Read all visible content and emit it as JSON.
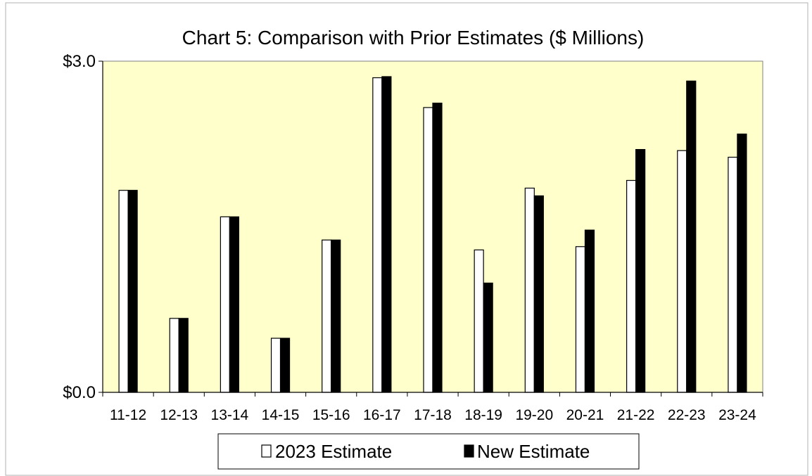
{
  "chart_data": {
    "type": "bar",
    "title": "Chart 5: Comparison with Prior Estimates ($ Millions)",
    "categories": [
      "11-12",
      "12-13",
      "13-14",
      "14-15",
      "15-16",
      "16-17",
      "17-18",
      "18-19",
      "19-20",
      "20-21",
      "21-22",
      "22-23",
      "23-24"
    ],
    "series": [
      {
        "name": "2023 Estimate",
        "values": [
          1.83,
          0.67,
          1.59,
          0.49,
          1.38,
          2.85,
          2.58,
          1.29,
          1.85,
          1.32,
          1.92,
          2.19,
          2.13
        ],
        "color": "#ffffff"
      },
      {
        "name": "New Estimate",
        "values": [
          1.83,
          0.67,
          1.59,
          0.49,
          1.38,
          2.86,
          2.62,
          0.99,
          1.78,
          1.47,
          2.2,
          2.82,
          2.34
        ],
        "color": "#000000"
      }
    ],
    "yticks": [
      "$3.0",
      "$0.0"
    ],
    "ylim": [
      0,
      3.0
    ],
    "plot_background": "#ffffcc",
    "legend_position": "bottom",
    "grid": false
  }
}
